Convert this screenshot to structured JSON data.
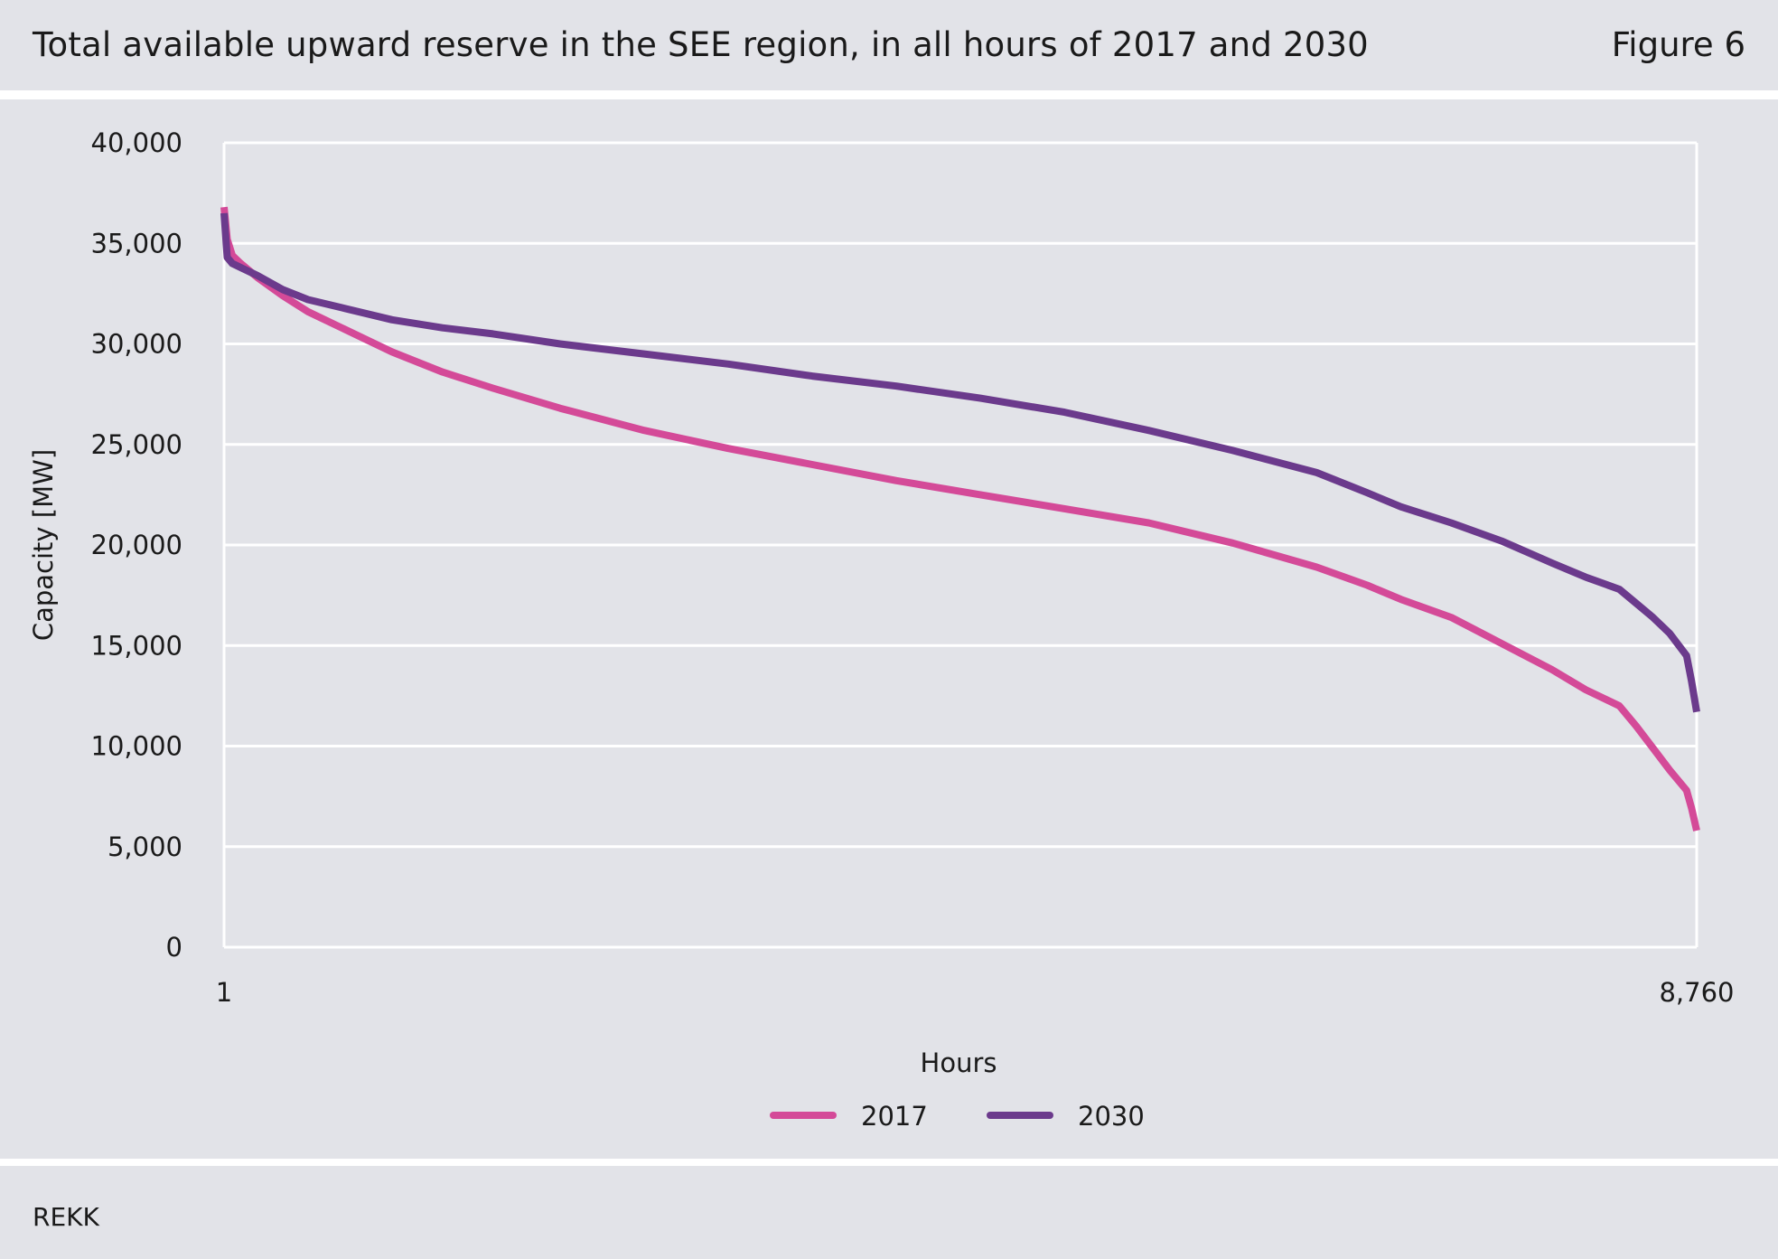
{
  "header": {
    "title": "Total available upward reserve in the SEE region, in all hours of 2017 and 2030",
    "figure_label": "Figure 6"
  },
  "footer": {
    "source": "REKK"
  },
  "colors": {
    "background": "#e2e3e8",
    "grid": "#ffffff",
    "series_2017": "#d44a98",
    "series_2030": "#6b3a8c"
  },
  "chart_data": {
    "type": "line",
    "title": "Total available upward reserve in the SEE region, in all hours of 2017 and 2030",
    "xlabel": "Hours",
    "ylabel": "Capacity [MW]",
    "xlim": [
      1,
      8760
    ],
    "ylim": [
      0,
      40000
    ],
    "x_tick_labels": [
      "1",
      "8,760"
    ],
    "x_ticks": [
      1,
      8760
    ],
    "y_ticks": [
      0,
      5000,
      10000,
      15000,
      20000,
      25000,
      30000,
      35000,
      40000
    ],
    "y_tick_labels": [
      "0",
      "5,000",
      "10,000",
      "15,000",
      "20,000",
      "25,000",
      "30,000",
      "35,000",
      "40,000"
    ],
    "grid": true,
    "legend_position": "bottom",
    "series": [
      {
        "name": "2017",
        "color": "#d44a98",
        "x": [
          1,
          20,
          50,
          100,
          200,
          350,
          500,
          700,
          1000,
          1300,
          1600,
          2000,
          2500,
          3000,
          3500,
          4000,
          4500,
          5000,
          5500,
          6000,
          6500,
          6800,
          7000,
          7300,
          7600,
          7900,
          8100,
          8300,
          8400,
          8500,
          8600,
          8700,
          8730,
          8760
        ],
        "y": [
          36800,
          35200,
          34400,
          34000,
          33300,
          32400,
          31600,
          30800,
          29600,
          28600,
          27800,
          26800,
          25700,
          24800,
          24000,
          23200,
          22500,
          21800,
          21100,
          20100,
          18900,
          18000,
          17300,
          16400,
          15100,
          13800,
          12800,
          12000,
          11000,
          9900,
          8800,
          7800,
          6900,
          5800
        ]
      },
      {
        "name": "2030",
        "color": "#6b3a8c",
        "x": [
          1,
          20,
          50,
          100,
          200,
          350,
          500,
          700,
          1000,
          1300,
          1600,
          2000,
          2500,
          3000,
          3500,
          4000,
          4500,
          5000,
          5500,
          6000,
          6500,
          6800,
          7000,
          7300,
          7600,
          7900,
          8100,
          8300,
          8400,
          8500,
          8600,
          8700,
          8730,
          8760
        ],
        "y": [
          36500,
          34300,
          34000,
          33800,
          33400,
          32700,
          32200,
          31800,
          31200,
          30800,
          30500,
          30000,
          29500,
          29000,
          28400,
          27900,
          27300,
          26600,
          25700,
          24700,
          23600,
          22600,
          21900,
          21100,
          20200,
          19100,
          18400,
          17800,
          17100,
          16400,
          15600,
          14500,
          13200,
          11700
        ]
      }
    ]
  }
}
